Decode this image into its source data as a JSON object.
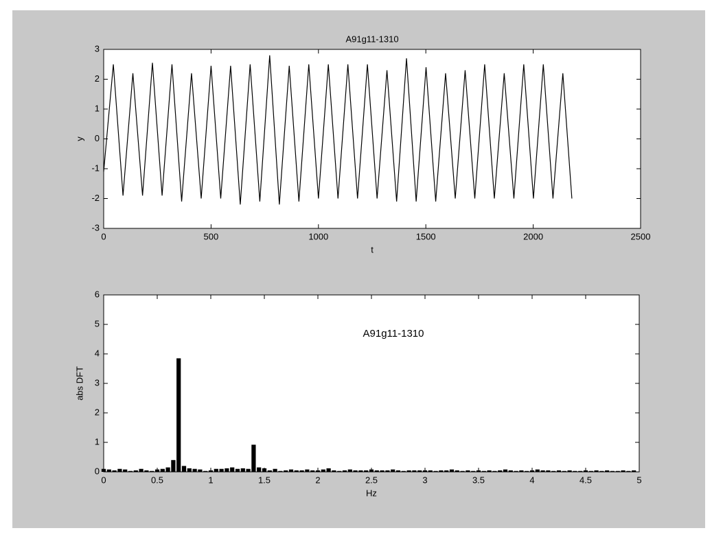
{
  "chart_data": [
    {
      "type": "line",
      "title": "A91g11-1310",
      "x_label": "t",
      "y_label": "y",
      "x": [
        0,
        45,
        90,
        136,
        181,
        227,
        272,
        318,
        363,
        409,
        454,
        500,
        545,
        591,
        636,
        682,
        727,
        773,
        818,
        864,
        909,
        955,
        1000,
        1046,
        1091,
        1137,
        1182,
        1228,
        1273,
        1319,
        1364,
        1410,
        1455,
        1501,
        1546,
        1592,
        1637,
        1683,
        1728,
        1774,
        1819,
        1865,
        1910,
        1956,
        2001,
        2047,
        2092,
        2138,
        2180
      ],
      "series": [
        {
          "name": "y",
          "color": "#000000",
          "values": [
            -1.1,
            2.5,
            -1.9,
            2.2,
            -1.9,
            2.55,
            -1.9,
            2.5,
            -2.1,
            2.2,
            -2.0,
            2.45,
            -2.0,
            2.45,
            -2.2,
            2.5,
            -2.1,
            2.8,
            -2.2,
            2.45,
            -2.1,
            2.5,
            -2.0,
            2.5,
            -2.0,
            2.5,
            -2.0,
            2.5,
            -2.0,
            2.3,
            -2.1,
            2.7,
            -2.1,
            2.4,
            -2.1,
            2.2,
            -2.0,
            2.3,
            -2.0,
            2.5,
            -2.0,
            2.2,
            -2.0,
            2.5,
            -2.0,
            2.5,
            -2.0,
            2.2,
            -2.0
          ]
        }
      ],
      "xlim": [
        0,
        2500
      ],
      "xticks": [
        0,
        500,
        1000,
        1500,
        2000,
        2500
      ],
      "ylim": [
        -3,
        3
      ],
      "yticks": [
        -3,
        -2,
        -1,
        0,
        1,
        2,
        3
      ]
    },
    {
      "type": "bar",
      "annotation": "A91g11-1310",
      "x_label": "Hz",
      "y_label": "abs DFT",
      "color": "#000000",
      "x": [
        0,
        0.05,
        0.1,
        0.15,
        0.2,
        0.25,
        0.3,
        0.35,
        0.4,
        0.45,
        0.5,
        0.55,
        0.6,
        0.65,
        0.7,
        0.75,
        0.8,
        0.85,
        0.9,
        0.95,
        1,
        1.05,
        1.1,
        1.15,
        1.2,
        1.25,
        1.3,
        1.35,
        1.4,
        1.45,
        1.5,
        1.55,
        1.6,
        1.65,
        1.7,
        1.75,
        1.8,
        1.85,
        1.9,
        1.95,
        2,
        2.05,
        2.1,
        2.15,
        2.2,
        2.25,
        2.3,
        2.35,
        2.4,
        2.45,
        2.5,
        2.55,
        2.6,
        2.65,
        2.7,
        2.75,
        2.8,
        2.85,
        2.9,
        2.95,
        3,
        3.05,
        3.1,
        3.15,
        3.2,
        3.25,
        3.3,
        3.35,
        3.4,
        3.45,
        3.5,
        3.55,
        3.6,
        3.65,
        3.7,
        3.75,
        3.8,
        3.85,
        3.9,
        3.95,
        4,
        4.05,
        4.1,
        4.15,
        4.2,
        4.25,
        4.3,
        4.35,
        4.4,
        4.45,
        4.5,
        4.55,
        4.6,
        4.65,
        4.7,
        4.75,
        4.8,
        4.85,
        4.9,
        4.95
      ],
      "values": [
        0.1,
        0.08,
        0.05,
        0.1,
        0.08,
        0.03,
        0.05,
        0.1,
        0.05,
        0.03,
        0.08,
        0.1,
        0.15,
        0.4,
        3.85,
        0.2,
        0.12,
        0.1,
        0.08,
        0.03,
        0.05,
        0.1,
        0.1,
        0.12,
        0.15,
        0.1,
        0.12,
        0.1,
        0.92,
        0.15,
        0.12,
        0.05,
        0.1,
        0.03,
        0.05,
        0.08,
        0.05,
        0.05,
        0.08,
        0.05,
        0.05,
        0.08,
        0.12,
        0.05,
        0.03,
        0.05,
        0.08,
        0.05,
        0.05,
        0.05,
        0.08,
        0.05,
        0.05,
        0.05,
        0.08,
        0.05,
        0.03,
        0.05,
        0.05,
        0.05,
        0.05,
        0.05,
        0.03,
        0.05,
        0.05,
        0.08,
        0.05,
        0.03,
        0.05,
        0.03,
        0.05,
        0.03,
        0.05,
        0.03,
        0.05,
        0.08,
        0.05,
        0.03,
        0.05,
        0.03,
        0.05,
        0.08,
        0.05,
        0.05,
        0.03,
        0.05,
        0.03,
        0.05,
        0.03,
        0.03,
        0.05,
        0.03,
        0.05,
        0.03,
        0.05,
        0.03,
        0.03,
        0.05,
        0.03,
        0.05
      ],
      "xlim": [
        0,
        5
      ],
      "xticks": [
        0,
        0.5,
        1,
        1.5,
        2,
        2.5,
        3,
        3.5,
        4,
        4.5,
        5
      ],
      "ylim": [
        0,
        6
      ],
      "yticks": [
        0,
        1,
        2,
        3,
        4,
        5,
        6
      ]
    }
  ]
}
